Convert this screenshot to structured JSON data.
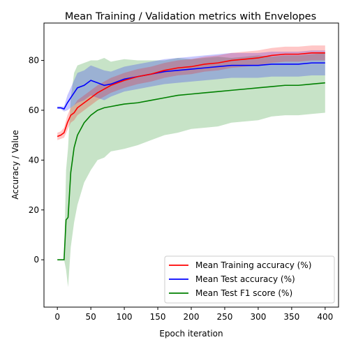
{
  "chart_data": {
    "type": "line",
    "title": "Mean Training / Validation metrics with Envelopes",
    "xlabel": "Epoch iteration",
    "ylabel": "Accuracy / Value",
    "xlim": [
      -20,
      420
    ],
    "ylim": [
      -19,
      95
    ],
    "xticks": [
      0,
      50,
      100,
      150,
      200,
      250,
      300,
      350,
      400
    ],
    "yticks": [
      0,
      20,
      40,
      60,
      80
    ],
    "legend_position": "lower-right",
    "grid": false,
    "series": [
      {
        "name": "Mean Training accuracy (%)",
        "color": "#ff0000",
        "envelope_color": "#ff0000",
        "x": [
          0,
          5,
          10,
          15,
          20,
          25,
          30,
          40,
          50,
          60,
          70,
          80,
          90,
          100,
          120,
          140,
          160,
          180,
          200,
          220,
          240,
          260,
          280,
          300,
          320,
          340,
          360,
          380,
          400
        ],
        "values": [
          49.5,
          50,
          51,
          55,
          58,
          59,
          61,
          63,
          65,
          67,
          68.5,
          70,
          71,
          72,
          73.5,
          74.5,
          76,
          77,
          77.5,
          78.5,
          79,
          80,
          80.5,
          81,
          82,
          82.5,
          82.5,
          83,
          83
        ],
        "envelope": [
          1.5,
          1.5,
          2,
          3,
          3,
          3,
          3,
          3,
          3,
          3,
          3,
          3,
          3,
          3,
          3,
          3,
          3,
          3,
          3,
          3,
          3,
          3,
          3,
          3,
          3,
          3,
          3,
          3,
          3
        ]
      },
      {
        "name": "Mean Test accuracy (%)",
        "color": "#0000ff",
        "envelope_color": "#0000ff",
        "x": [
          0,
          5,
          10,
          15,
          20,
          25,
          30,
          40,
          50,
          60,
          70,
          80,
          90,
          100,
          120,
          140,
          160,
          180,
          200,
          220,
          240,
          260,
          280,
          300,
          320,
          340,
          360,
          380,
          400
        ],
        "values": [
          61,
          61,
          60.5,
          63,
          65,
          67,
          69,
          70,
          72,
          71,
          70,
          70.5,
          71.5,
          72.5,
          73.5,
          74.5,
          75.5,
          76,
          76.5,
          77,
          77.5,
          78,
          78,
          78,
          78.5,
          78.5,
          78.5,
          79,
          79
        ],
        "envelope": [
          0.5,
          0.5,
          1,
          3,
          4,
          5,
          6,
          6,
          6,
          6,
          6,
          5,
          5,
          5,
          5,
          5,
          5,
          5,
          5,
          5,
          5,
          5,
          5,
          5,
          5,
          5,
          5,
          5,
          5
        ]
      },
      {
        "name": "Mean Test F1 score (%)",
        "color": "#008000",
        "envelope_color": "#008000",
        "x": [
          0,
          5,
          10,
          13,
          16,
          20,
          25,
          30,
          40,
          50,
          60,
          70,
          80,
          90,
          100,
          120,
          140,
          160,
          180,
          200,
          220,
          240,
          260,
          280,
          300,
          320,
          340,
          360,
          380,
          400
        ],
        "values": [
          0,
          0,
          0,
          16,
          17,
          35,
          45,
          50,
          55,
          58,
          60,
          61,
          61.5,
          62,
          62.5,
          63,
          64,
          65,
          66,
          66.5,
          67,
          67.5,
          68,
          68.5,
          69,
          69.5,
          70,
          70,
          70.5,
          71
        ],
        "envelope": [
          0,
          0,
          0,
          20,
          28,
          30,
          30,
          28,
          24,
          22,
          20,
          20,
          18,
          18,
          18,
          17,
          16,
          15,
          15,
          14,
          14,
          14,
          13,
          13,
          13,
          12,
          12,
          12,
          12,
          12
        ]
      }
    ]
  }
}
